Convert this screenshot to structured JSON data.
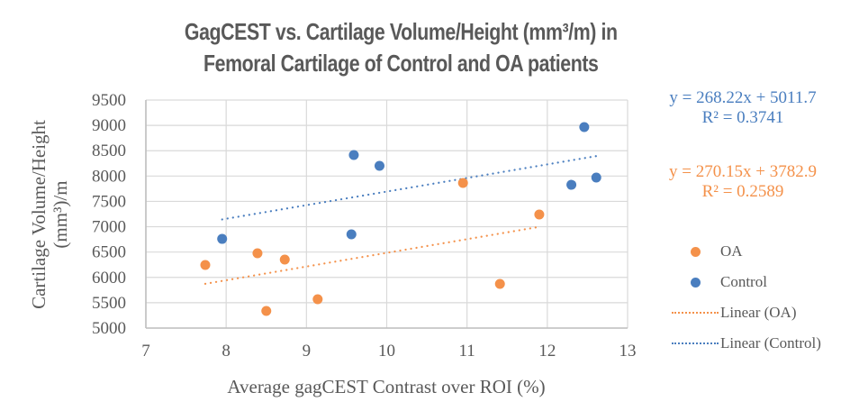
{
  "chart_data": {
    "type": "scatter",
    "title_line1": "GagCEST vs. Cartilage Volume/Height (mm³/m) in",
    "title_line2": "Femoral Cartilage of Control and OA patients",
    "xlabel": "Average gagCEST  Contrast over ROI (%)",
    "ylabel_line1": "Cartilage Volume/Height",
    "ylabel_line2": "(mm³)/m",
    "xlim": [
      7,
      13
    ],
    "ylim": [
      5000,
      9500
    ],
    "x_ticks": [
      7,
      8,
      9,
      10,
      11,
      12,
      13
    ],
    "y_ticks": [
      5000,
      5500,
      6000,
      6500,
      7000,
      7500,
      8000,
      8500,
      9000,
      9500
    ],
    "grid": true,
    "legend_position": "right",
    "series": [
      {
        "name": "OA",
        "color": "#F4914A",
        "points": [
          [
            7.74,
            6245
          ],
          [
            8.39,
            6476
          ],
          [
            8.73,
            6352
          ],
          [
            8.5,
            5338
          ],
          [
            9.14,
            5569
          ],
          [
            10.95,
            7863
          ],
          [
            11.9,
            7241
          ],
          [
            11.41,
            5872
          ]
        ],
        "trendline": {
          "name": "Linear (OA)",
          "slope": 270.15,
          "intercept": 3782.9,
          "x_range": [
            7.74,
            11.9
          ],
          "equation": "y = 270.15x + 3782.9",
          "r2": "R² = 0.2589"
        }
      },
      {
        "name": "Control",
        "color": "#4A7EBF",
        "points": [
          [
            7.95,
            6760
          ],
          [
            9.59,
            8415
          ],
          [
            9.91,
            8201
          ],
          [
            9.56,
            6849
          ],
          [
            12.3,
            7827
          ],
          [
            12.46,
            8966
          ],
          [
            12.61,
            7970
          ]
        ],
        "trendline": {
          "name": "Linear (Control)",
          "slope": 268.22,
          "intercept": 5011.7,
          "x_range": [
            7.95,
            12.61
          ],
          "equation": "y = 268.22x + 5011.7",
          "r2": "R² = 0.3741"
        }
      }
    ],
    "legend": [
      "OA",
      "Control",
      "Linear (OA)",
      "Linear (Control)"
    ]
  }
}
